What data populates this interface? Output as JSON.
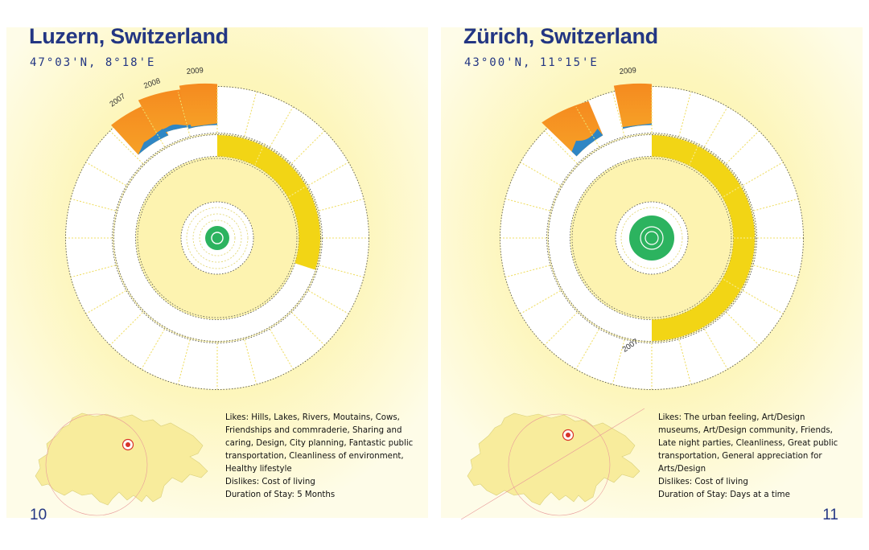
{
  "pages": [
    {
      "title": "Luzern, Switzerland",
      "coords": "47°03'N, 8°18'E",
      "years": [
        "2007",
        "2008",
        "2009"
      ],
      "likes": "Likes: Hills, Lakes, Rivers, Moutains, Cows, Friendships and commraderie, Sharing and caring, Design, City planning, Fantastic public transportation, Cleanliness of environment, Healthy lifestyle",
      "dislikes": "Dislikes: Cost of living",
      "duration": "Duration of Stay: 5 Months",
      "page_number": "10"
    },
    {
      "title": "Zürich, Switzerland",
      "coords": "43°00'N, 11°15'E",
      "years": [
        "2007",
        "2009"
      ],
      "likes": "Likes: The urban feeling, Art/Design museums, Art/Design community, Friends, Late night parties, Cleanliness, Great public transportation, General appreciation for Arts/Design",
      "dislikes": "Dislikes: Cost of living",
      "duration": "Duration of Stay: Days at a time",
      "page_number": "11"
    }
  ],
  "colors": {
    "title": "#233683",
    "orange": "#f47f20",
    "blue": "#2f86c4",
    "yellow": "#f2d515",
    "green": "#2cb35f",
    "map": "#f8ec9c"
  }
}
